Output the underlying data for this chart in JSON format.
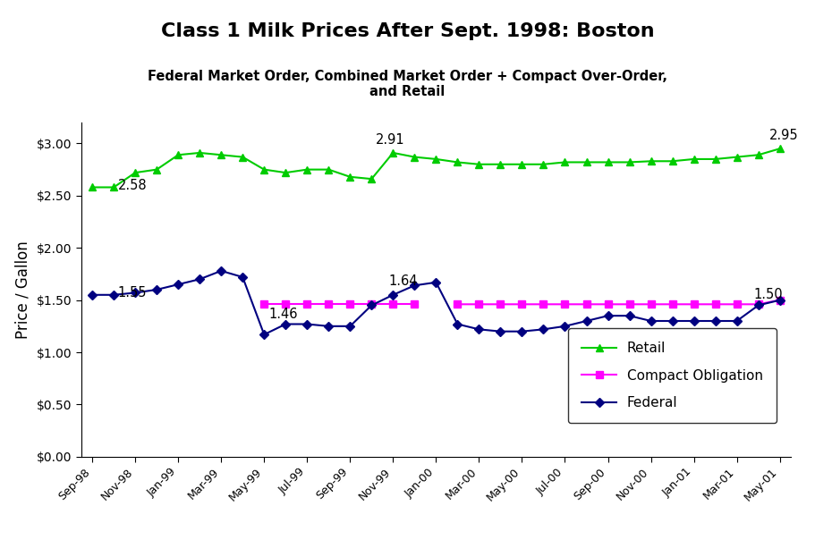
{
  "title": "Class 1 Milk Prices After Sept. 1998: Boston",
  "subtitle": "Federal Market Order, Combined Market Order + Compact Over-Order,\nand Retail",
  "ylabel": "Price / Gallon",
  "x_tick_labels": [
    "Sep-98",
    "Nov-98",
    "Jan-99",
    "Mar-99",
    "May-99",
    "Jul-99",
    "Sep-99",
    "Nov-99",
    "Jan-00",
    "Mar-00",
    "May-00",
    "Jul-00",
    "Sep-00",
    "Nov-00",
    "Jan-01",
    "Mar-01",
    "May-01"
  ],
  "retail_y": [
    2.58,
    2.58,
    2.72,
    2.75,
    2.89,
    2.91,
    2.89,
    2.87,
    2.75,
    2.72,
    2.75,
    2.75,
    2.68,
    2.66,
    2.91,
    2.87,
    2.85,
    2.82,
    2.8,
    2.8,
    2.8,
    2.8,
    2.82,
    2.82,
    2.82,
    2.82,
    2.83,
    2.83,
    2.85,
    2.85,
    2.87,
    2.89,
    2.95
  ],
  "compact_y": [
    null,
    null,
    null,
    null,
    null,
    null,
    null,
    null,
    1.46,
    1.46,
    1.46,
    1.46,
    1.46,
    1.46,
    1.46,
    1.46,
    null,
    1.46,
    1.46,
    1.46,
    1.46,
    1.46,
    1.46,
    1.46,
    1.46,
    1.46,
    1.46,
    1.46,
    1.46,
    1.46,
    1.46,
    1.46,
    1.5
  ],
  "federal_y": [
    1.55,
    1.55,
    1.57,
    1.6,
    1.65,
    1.7,
    1.78,
    1.72,
    1.17,
    1.27,
    1.27,
    1.25,
    1.25,
    1.45,
    1.55,
    1.64,
    1.67,
    1.27,
    1.22,
    1.2,
    1.2,
    1.22,
    1.25,
    1.3,
    1.35,
    1.35,
    1.3,
    1.3,
    1.3,
    1.3,
    1.3,
    1.45,
    1.5
  ],
  "retail_color": "#00cc00",
  "compact_color": "#ff00ff",
  "federal_color": "#000080",
  "ylim": [
    0.0,
    3.2
  ],
  "yticks": [
    0.0,
    0.5,
    1.0,
    1.5,
    2.0,
    2.5,
    3.0
  ]
}
